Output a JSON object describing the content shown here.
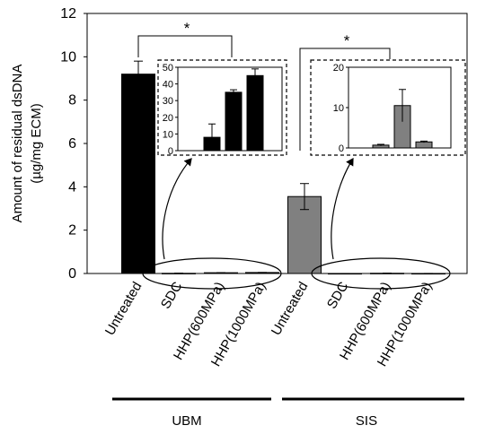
{
  "chart_data": {
    "type": "bar",
    "ylabel_line1": "Amount of residual dsDNA",
    "ylabel_line2": "(µg/mg ECM)",
    "ylim": [
      0,
      12
    ],
    "yticks": [
      0,
      2,
      4,
      6,
      8,
      10,
      12
    ],
    "grid": false,
    "categories": [
      "Untreated",
      "SDC",
      "HHP(600MPa)",
      "HHP(1000MPa)",
      "Untreated",
      "SDC",
      "HHP(600MPa)",
      "HHP(1000MPa)"
    ],
    "groups": [
      {
        "label": "UBM",
        "color": "#000000",
        "values": [
          9.2,
          0.008,
          0.035,
          0.045
        ],
        "errors": [
          0.6,
          0.008,
          0.0015,
          0.004
        ]
      },
      {
        "label": "SIS",
        "color": "#808080",
        "values": [
          3.55,
          0.0007,
          0.0105,
          0.0015
        ],
        "errors": [
          0.6,
          0.0002,
          0.004,
          0.0002
        ]
      }
    ],
    "significance": [
      "*",
      "*"
    ],
    "insets": [
      {
        "group": "UBM",
        "ylim": [
          0,
          50
        ],
        "yticks": [
          0,
          10,
          20,
          30,
          40,
          50
        ],
        "values": [
          8,
          35,
          45
        ],
        "errors": [
          8,
          1.5,
          4
        ]
      },
      {
        "group": "SIS",
        "ylim": [
          0,
          20
        ],
        "yticks": [
          0,
          10,
          20
        ],
        "values": [
          0.7,
          10.5,
          1.5
        ],
        "errors": [
          0.2,
          4,
          0.2
        ]
      }
    ]
  }
}
